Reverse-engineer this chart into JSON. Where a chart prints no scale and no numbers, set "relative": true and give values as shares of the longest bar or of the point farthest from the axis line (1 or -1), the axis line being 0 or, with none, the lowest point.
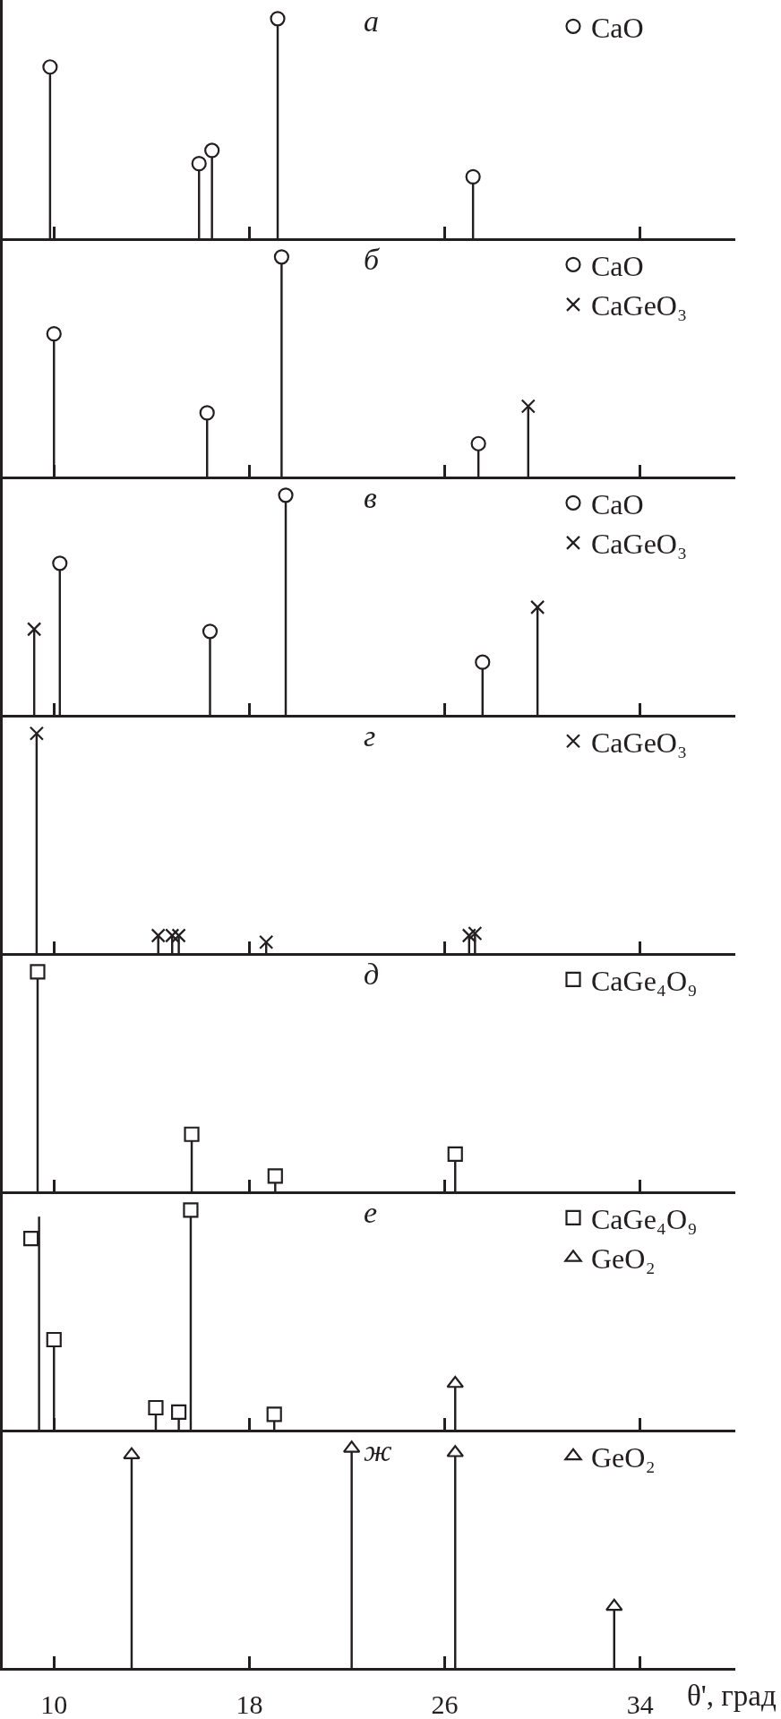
{
  "chart_data": [
    {
      "type": "lollipop",
      "title": "а",
      "xlim": [
        7.9,
        37.9
      ],
      "xticks": [
        10,
        18,
        26,
        34
      ],
      "relative": true,
      "tick_labels": false,
      "legend": "top right",
      "series": [
        {
          "name": "CaO",
          "color": "#231f20",
          "marker": "circle",
          "x": [
            9.84,
            15.94,
            16.47,
            19.16,
            27.16
          ],
          "values": [
            0.78,
            0.34,
            0.4,
            1,
            0.28
          ]
        }
      ]
    },
    {
      "type": "lollipop",
      "title": "б",
      "xlim": [
        7.9,
        37.9
      ],
      "xticks": [
        10,
        18,
        26,
        34
      ],
      "relative": true,
      "tick_labels": false,
      "legend": "top right",
      "series": [
        {
          "name": "CaO",
          "color": "#231f20",
          "marker": "circle",
          "x": [
            10.0,
            16.27,
            19.32,
            27.38
          ],
          "values": [
            0.65,
            0.29,
            1,
            0.15
          ]
        },
        {
          "name": "CaGeO₃",
          "color": "#231f20",
          "marker": "cross",
          "x": [
            29.42
          ],
          "values": [
            0.32
          ]
        }
      ]
    },
    {
      "type": "lollipop",
      "title": "в",
      "xlim": [
        7.9,
        37.9
      ],
      "xticks": [
        10,
        18,
        26,
        34
      ],
      "relative": true,
      "tick_labels": false,
      "legend": "top right",
      "series": [
        {
          "name": "CaO",
          "color": "#231f20",
          "marker": "circle",
          "x": [
            10.24,
            16.39,
            19.49,
            27.55
          ],
          "values": [
            0.69,
            0.38,
            1,
            0.24
          ]
        },
        {
          "name": "CaGeO₃",
          "color": "#231f20",
          "marker": "cross",
          "x": [
            9.19,
            29.8
          ],
          "values": [
            0.39,
            0.49
          ]
        }
      ]
    },
    {
      "type": "lollipop",
      "title": "г",
      "xlim": [
        7.9,
        37.9
      ],
      "xticks": [
        10,
        18,
        26,
        34
      ],
      "relative": true,
      "tick_labels": false,
      "legend": "top right",
      "series": [
        {
          "name": "CaGeO₃",
          "color": "#231f20",
          "marker": "cross",
          "x": [
            9.29,
            14.27,
            14.84,
            15.11,
            18.69,
            27.0,
            27.24
          ],
          "values": [
            1,
            0.08,
            0.08,
            0.08,
            0.05,
            0.08,
            0.09
          ]
        }
      ]
    },
    {
      "type": "lollipop",
      "title": "д",
      "xlim": [
        7.9,
        37.9
      ],
      "xticks": [
        10,
        18,
        26,
        34
      ],
      "relative": true,
      "tick_labels": false,
      "legend": "top right",
      "series": [
        {
          "name": "CaGe₄O₉",
          "color": "#231f20",
          "marker": "square",
          "x": [
            9.33,
            15.64,
            19.06,
            26.43
          ],
          "values": [
            1,
            0.26,
            0.07,
            0.17
          ]
        }
      ]
    },
    {
      "type": "lollipop",
      "title": "е",
      "xlim": [
        7.9,
        37.9
      ],
      "xticks": [
        10,
        18,
        26,
        34
      ],
      "relative": true,
      "tick_labels": false,
      "legend": "top right",
      "series": [
        {
          "name": "CaGe₄O₉",
          "color": "#231f20",
          "marker": "square",
          "x": [
            10.0,
            14.17,
            15.11,
            15.6,
            19.02
          ],
          "values": [
            0.41,
            0.1,
            0.08,
            1,
            0.07
          ]
        },
        {
          "type": "scatter",
          "color": "#231f20",
          "marker": "square",
          "x": [
            9.06
          ],
          "values": [
            0.87
          ]
        },
        {
          "type": "bar",
          "color": "#231f20",
          "x": [
            9.39
          ],
          "values": [
            0.97
          ]
        },
        {
          "name": "GeO₂",
          "color": "#231f20",
          "marker": "triangle",
          "x": [
            26.43
          ],
          "values": [
            0.21
          ]
        }
      ]
    },
    {
      "type": "lollipop",
      "title": "ж",
      "xlabel": "θ', град",
      "xlim": [
        7.9,
        37.9
      ],
      "xticks": [
        10,
        18,
        26,
        34
      ],
      "relative": true,
      "tick_labels": "x",
      "legend": "top right",
      "series": [
        {
          "name": "GeO₂",
          "color": "#231f20",
          "marker": "triangle",
          "x": [
            13.18,
            22.19,
            26.43,
            32.94
          ],
          "values": [
            0.97,
            1,
            0.98,
            0.28
          ]
        }
      ]
    }
  ]
}
